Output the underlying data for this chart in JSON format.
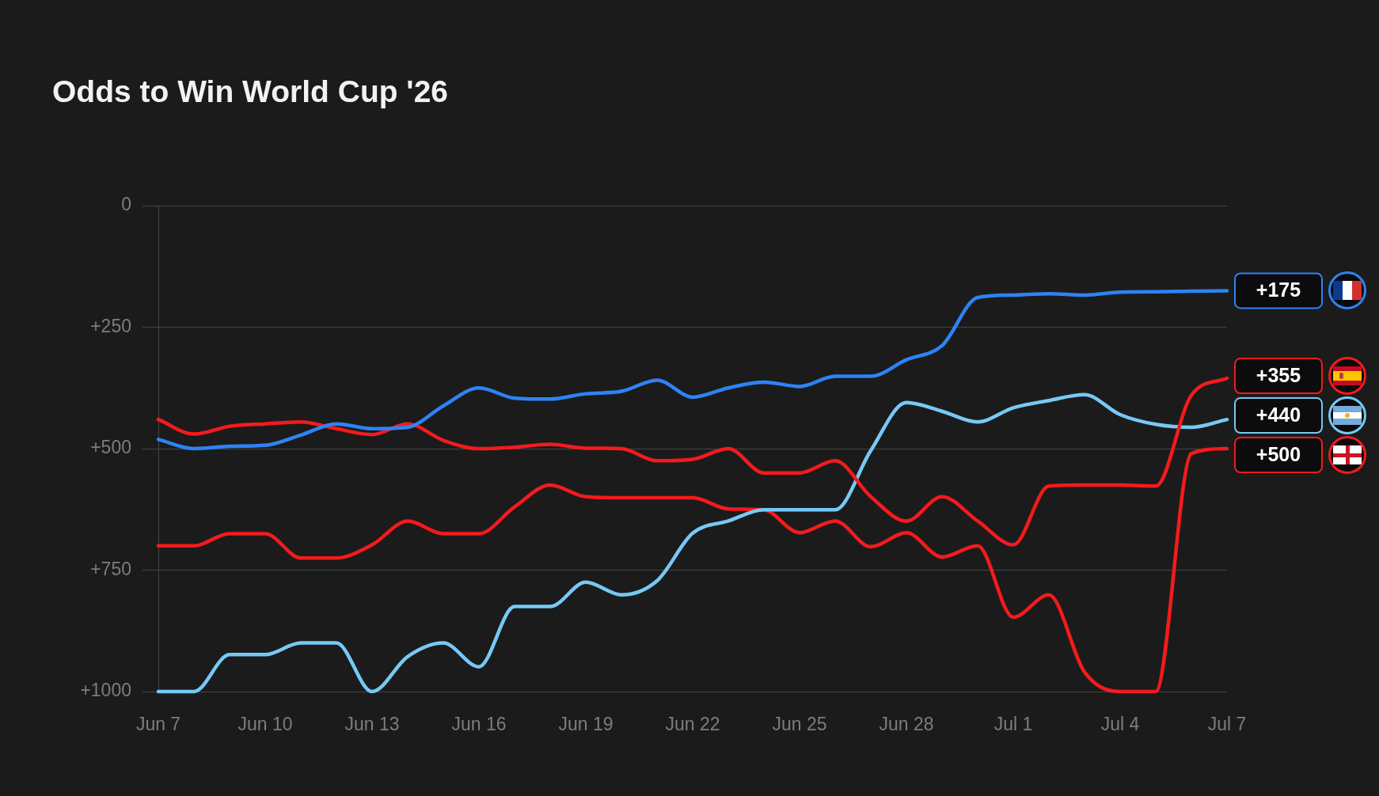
{
  "chart_data": {
    "type": "line",
    "title": "Odds to Win World Cup '26",
    "x": [
      "--06-07",
      "--06-08",
      "--06-09",
      "--06-10",
      "--06-11",
      "--06-12",
      "--06-13",
      "--06-14",
      "--06-15",
      "--06-16",
      "--06-17",
      "--06-18",
      "--06-19",
      "--06-20",
      "--06-21",
      "--06-22",
      "--06-23",
      "--06-24",
      "--06-25",
      "--06-26",
      "--06-27",
      "--06-28",
      "--06-29",
      "--06-30",
      "--07-01",
      "--07-02",
      "--07-03",
      "--07-04",
      "--07-05",
      "--07-06",
      "--07-07"
    ],
    "xlim": [
      "--06-07",
      "--07-07"
    ],
    "xticks": [
      {
        "value": "--06-07",
        "label": "Jun 7"
      },
      {
        "value": "--06-10",
        "label": "Jun 10"
      },
      {
        "value": "--06-13",
        "label": "Jun 13"
      },
      {
        "value": "--06-16",
        "label": "Jun 16"
      },
      {
        "value": "--06-19",
        "label": "Jun 19"
      },
      {
        "value": "--06-22",
        "label": "Jun 22"
      },
      {
        "value": "--06-25",
        "label": "Jun 25"
      },
      {
        "value": "--06-28",
        "label": "Jun 28"
      },
      {
        "value": "--07-01",
        "label": "Jul 1"
      },
      {
        "value": "--07-04",
        "label": "Jul 4"
      },
      {
        "value": "--07-07",
        "label": "Jul 7"
      }
    ],
    "ylim": [
      1000,
      0
    ],
    "yticks": [
      0,
      {
        "value": 250,
        "label": "+250"
      },
      {
        "value": 500,
        "label": "+500"
      },
      {
        "value": 750,
        "label": "+750"
      },
      {
        "value": 1000,
        "label": "+1000"
      }
    ],
    "grid": "y",
    "legend": false,
    "series": [
      {
        "color": "#2d83f6",
        "values": [
          481,
          500,
          495,
          493,
          472,
          449,
          459,
          456,
          412,
          375,
          396,
          398,
          387,
          382,
          359,
          394,
          375,
          363,
          372,
          351,
          351,
          317,
          288,
          189,
          184,
          181,
          184,
          178,
          177,
          176,
          175
        ],
        "value_labels": [
          null,
          null,
          null,
          null,
          null,
          null,
          null,
          null,
          null,
          null,
          null,
          null,
          null,
          null,
          null,
          null,
          null,
          null,
          null,
          null,
          null,
          null,
          null,
          null,
          null,
          null,
          null,
          null,
          null,
          null,
          "+175"
        ]
      },
      {
        "color": "#f41a1d",
        "values": [
          440,
          470,
          454,
          449,
          445,
          459,
          471,
          449,
          483,
          500,
          497,
          491,
          499,
          500,
          525,
          522,
          500,
          550,
          550,
          525,
          599,
          649,
          599,
          649,
          698,
          577,
          575,
          575,
          577,
          390,
          355
        ],
        "value_labels": [
          null,
          null,
          null,
          null,
          null,
          null,
          null,
          null,
          null,
          null,
          null,
          null,
          null,
          null,
          null,
          null,
          null,
          null,
          null,
          null,
          null,
          null,
          null,
          null,
          null,
          null,
          null,
          null,
          null,
          null,
          "+355"
        ]
      },
      {
        "color": "#76c9f6",
        "values": [
          1000,
          1000,
          924,
          924,
          900,
          900,
          1000,
          928,
          900,
          949,
          825,
          825,
          775,
          801,
          772,
          674,
          649,
          626,
          626,
          626,
          504,
          405,
          423,
          445,
          416,
          401,
          389,
          430,
          450,
          456,
          440
        ],
        "value_labels": [
          null,
          null,
          null,
          null,
          null,
          null,
          null,
          null,
          null,
          null,
          null,
          null,
          null,
          null,
          null,
          null,
          null,
          null,
          null,
          null,
          null,
          null,
          null,
          null,
          null,
          null,
          null,
          null,
          null,
          null,
          "+440"
        ]
      },
      {
        "color": "#f41a1d",
        "values": [
          700,
          700,
          675,
          675,
          725,
          725,
          698,
          649,
          675,
          675,
          620,
          575,
          599,
          601,
          601,
          601,
          624,
          626,
          673,
          649,
          702,
          673,
          723,
          700,
          847,
          801,
          960,
          1000,
          1000,
          510,
          500
        ],
        "value_labels": [
          null,
          null,
          null,
          null,
          null,
          null,
          null,
          null,
          null,
          null,
          null,
          null,
          null,
          null,
          null,
          null,
          null,
          null,
          null,
          null,
          null,
          null,
          null,
          null,
          null,
          null,
          null,
          null,
          null,
          null,
          "+500"
        ]
      }
    ]
  }
}
